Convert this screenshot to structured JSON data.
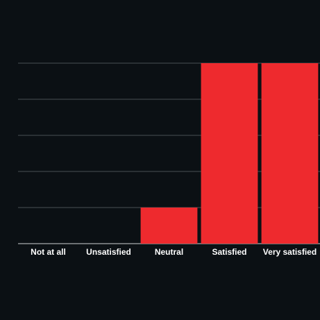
{
  "chart_data": {
    "type": "bar",
    "categories": [
      "Not at all",
      "Unsatisfied",
      "Neutral",
      "Satisfied",
      "Very satisfied"
    ],
    "values": [
      0,
      0,
      1,
      5,
      5
    ],
    "color": "#ee2a2e",
    "ylim": [
      0,
      5
    ],
    "yticks": [
      0,
      1,
      2,
      3,
      4,
      5
    ],
    "grid": true
  }
}
